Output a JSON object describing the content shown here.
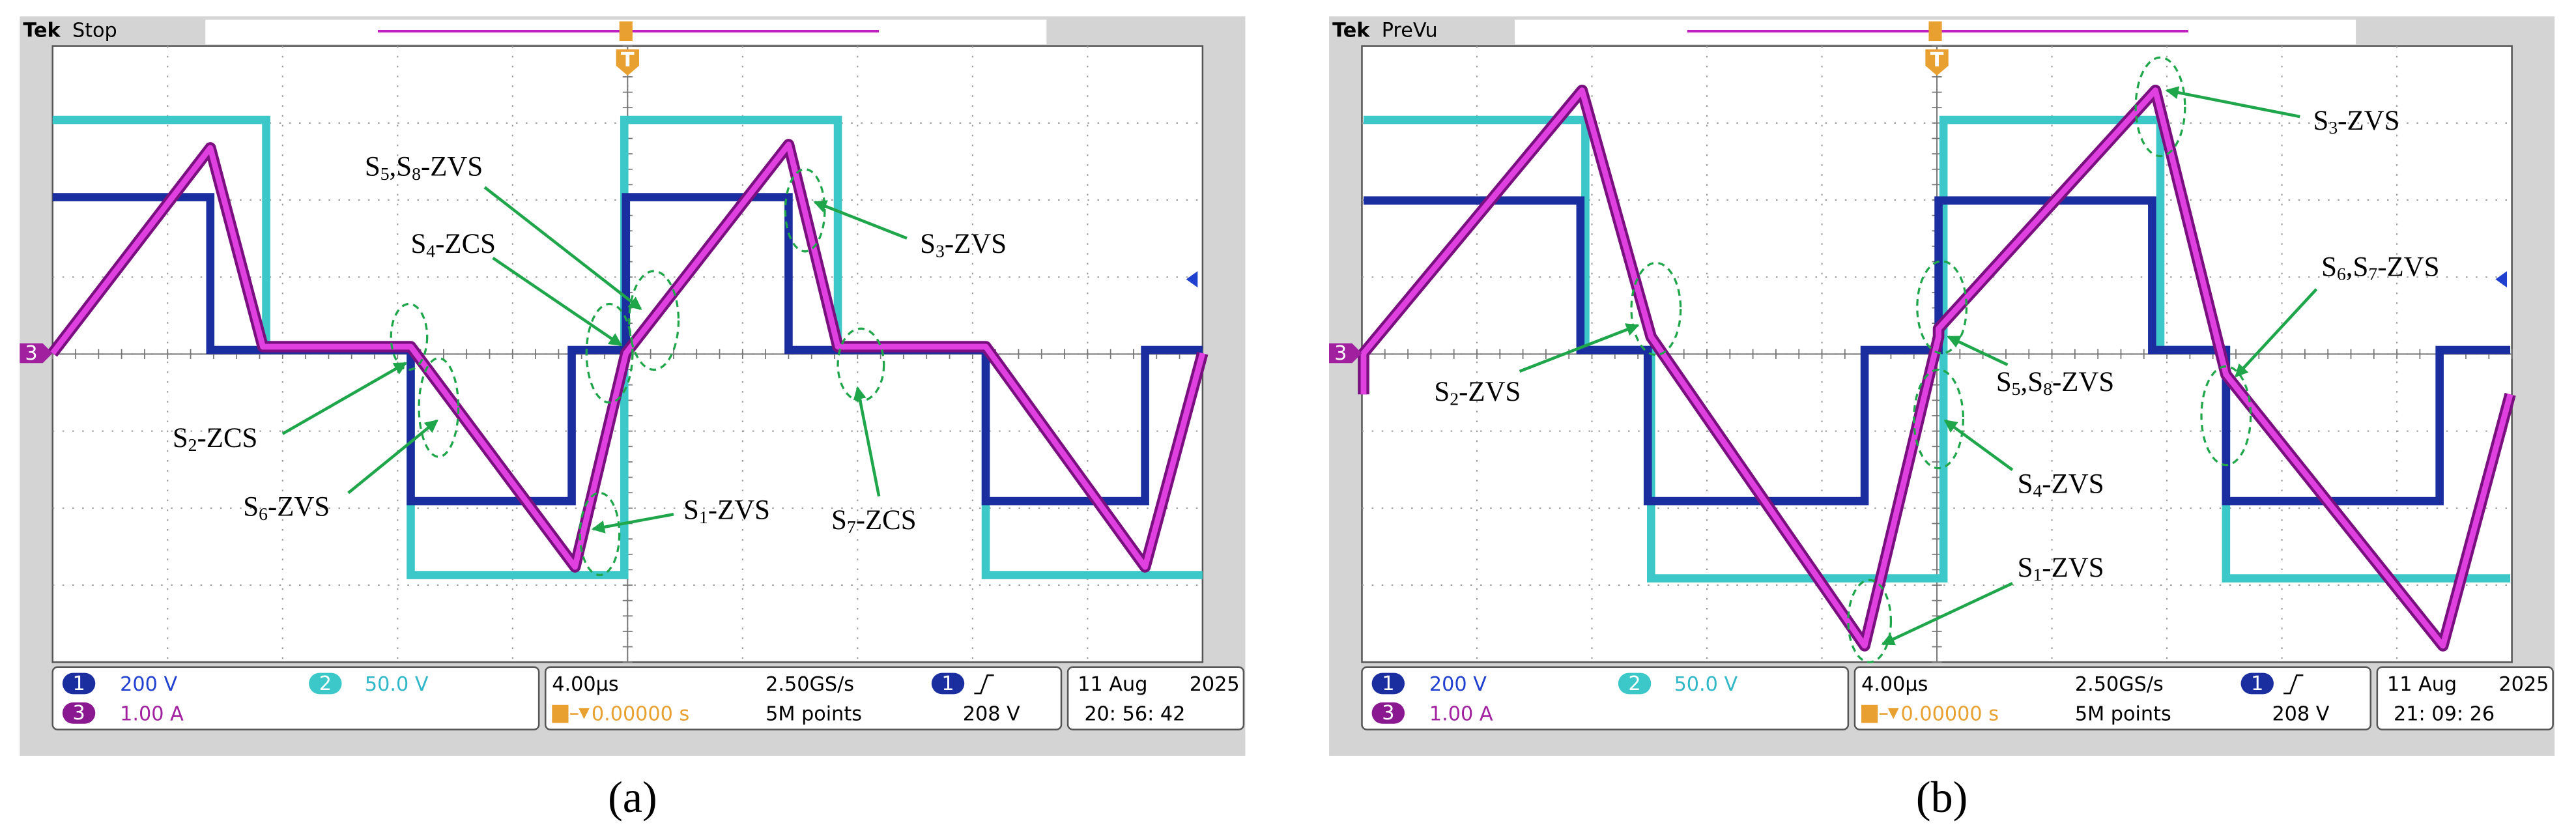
{
  "panels": [
    {
      "label": "(a)",
      "brand": "Tek",
      "status": "Stop",
      "trigger_marker": "T",
      "channel_marker": "3",
      "readout": {
        "ch1_badge": "1",
        "ch1_scale": "200 V",
        "ch2_badge": "2",
        "ch2_scale": "50.0 V",
        "ch3_badge": "3",
        "ch3_scale": "1.00 A",
        "time_div": "4.00µs",
        "sample_rate": "2.50GS/s",
        "offset": "0.00000 s",
        "record": "5M points",
        "trigger_source": "1",
        "trigger_level": "208 V",
        "date": "11 Aug",
        "year": "2025",
        "time": "20: 56: 42"
      },
      "annotations": [
        {
          "parts": [
            "S",
            "5",
            ",S",
            "8",
            "-ZVS"
          ]
        },
        {
          "parts": [
            "S",
            "4",
            "-ZCS"
          ]
        },
        {
          "parts": [
            "S",
            "3",
            "-ZVS"
          ]
        },
        {
          "parts": [
            "S",
            "2",
            "-ZCS"
          ]
        },
        {
          "parts": [
            "S",
            "6",
            "-ZVS"
          ]
        },
        {
          "parts": [
            "S",
            "1",
            "-ZVS"
          ]
        },
        {
          "parts": [
            "S",
            "7",
            "-ZCS"
          ]
        }
      ]
    },
    {
      "label": "(b)",
      "brand": "Tek",
      "status": "PreVu",
      "trigger_marker": "T",
      "channel_marker": "3",
      "readout": {
        "ch1_badge": "1",
        "ch1_scale": "200 V",
        "ch2_badge": "2",
        "ch2_scale": "50.0 V",
        "ch3_badge": "3",
        "ch3_scale": "1.00 A",
        "time_div": "4.00µs",
        "sample_rate": "2.50GS/s",
        "offset": "0.00000 s",
        "record": "5M points",
        "trigger_source": "1",
        "trigger_level": "208 V",
        "date": "11 Aug",
        "year": "2025",
        "time": "21: 09: 26"
      },
      "annotations": [
        {
          "parts": [
            "S",
            "2",
            "-ZVS"
          ]
        },
        {
          "parts": [
            "S",
            "5",
            ",S",
            "8",
            "-ZVS"
          ]
        },
        {
          "parts": [
            "S",
            "4",
            "-ZVS"
          ]
        },
        {
          "parts": [
            "S",
            "1",
            "-ZVS"
          ]
        },
        {
          "parts": [
            "S",
            "3",
            "-ZVS"
          ]
        },
        {
          "parts": [
            "S",
            "6",
            ",S",
            "7",
            "-ZVS"
          ]
        }
      ]
    }
  ]
}
